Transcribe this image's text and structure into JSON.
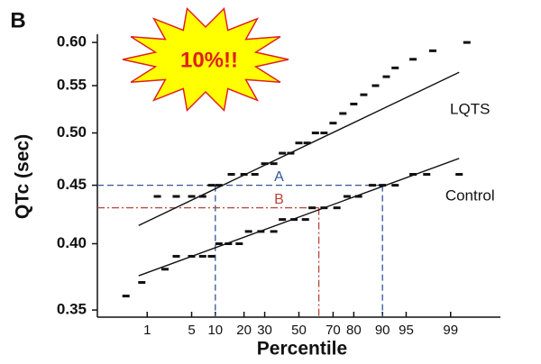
{
  "chart_data": {
    "type": "scatter",
    "panel_label": "B",
    "burst_text": "10%!!",
    "ylabel": "QTc (sec)",
    "xlabel": "Percentile",
    "xscale": "probit",
    "yscale": "log",
    "xlim": [
      0.1,
      99.9
    ],
    "ylim": [
      0.345,
      0.61
    ],
    "xticks": [
      1,
      5,
      10,
      20,
      30,
      50,
      70,
      80,
      90,
      95,
      99
    ],
    "yticks": [
      0.35,
      {
        "value": 0.4,
        "label": "0.40"
      },
      0.45,
      {
        "value": 0.5,
        "label": "0.50"
      },
      0.55,
      {
        "value": 0.6,
        "label": "0.60"
      }
    ],
    "series": [
      {
        "name": "LQTS",
        "color": "#111111",
        "x": [
          1.5,
          3,
          5,
          7,
          9,
          11,
          15,
          20,
          25,
          30,
          35,
          40,
          45,
          50,
          55,
          60,
          65,
          70,
          75,
          80,
          84,
          88,
          91,
          93,
          96,
          98,
          99.5
        ],
        "values": [
          0.44,
          0.44,
          0.44,
          0.44,
          0.45,
          0.45,
          0.46,
          0.46,
          0.46,
          0.47,
          0.47,
          0.48,
          0.48,
          0.49,
          0.49,
          0.5,
          0.5,
          0.51,
          0.52,
          0.53,
          0.54,
          0.55,
          0.56,
          0.57,
          0.58,
          0.59,
          0.6
        ],
        "fit": {
          "x": [
            0.7,
            99.3
          ],
          "y": [
            0.415,
            0.565
          ]
        }
      },
      {
        "name": "Control",
        "color": "#111111",
        "x": [
          0.4,
          0.8,
          2,
          3,
          5,
          7,
          9,
          11,
          14,
          18,
          22,
          28,
          35,
          40,
          47,
          54,
          58,
          65,
          72,
          77,
          82,
          87,
          90,
          93,
          96,
          97.5,
          99.3
        ],
        "values": [
          0.36,
          0.37,
          0.38,
          0.39,
          0.39,
          0.39,
          0.39,
          0.4,
          0.4,
          0.4,
          0.41,
          0.41,
          0.41,
          0.42,
          0.42,
          0.42,
          0.43,
          0.43,
          0.43,
          0.44,
          0.44,
          0.45,
          0.45,
          0.45,
          0.46,
          0.46,
          0.46
        ],
        "fit": {
          "x": [
            0.7,
            99.3
          ],
          "y": [
            0.375,
            0.475
          ]
        }
      }
    ],
    "reference_lines": [
      {
        "label": "A",
        "y": 0.45,
        "x": [
          10,
          90
        ],
        "color": "#2f5597"
      },
      {
        "label": "B",
        "y": 0.43,
        "x": [
          62
        ],
        "color": "#b8443a"
      }
    ]
  }
}
